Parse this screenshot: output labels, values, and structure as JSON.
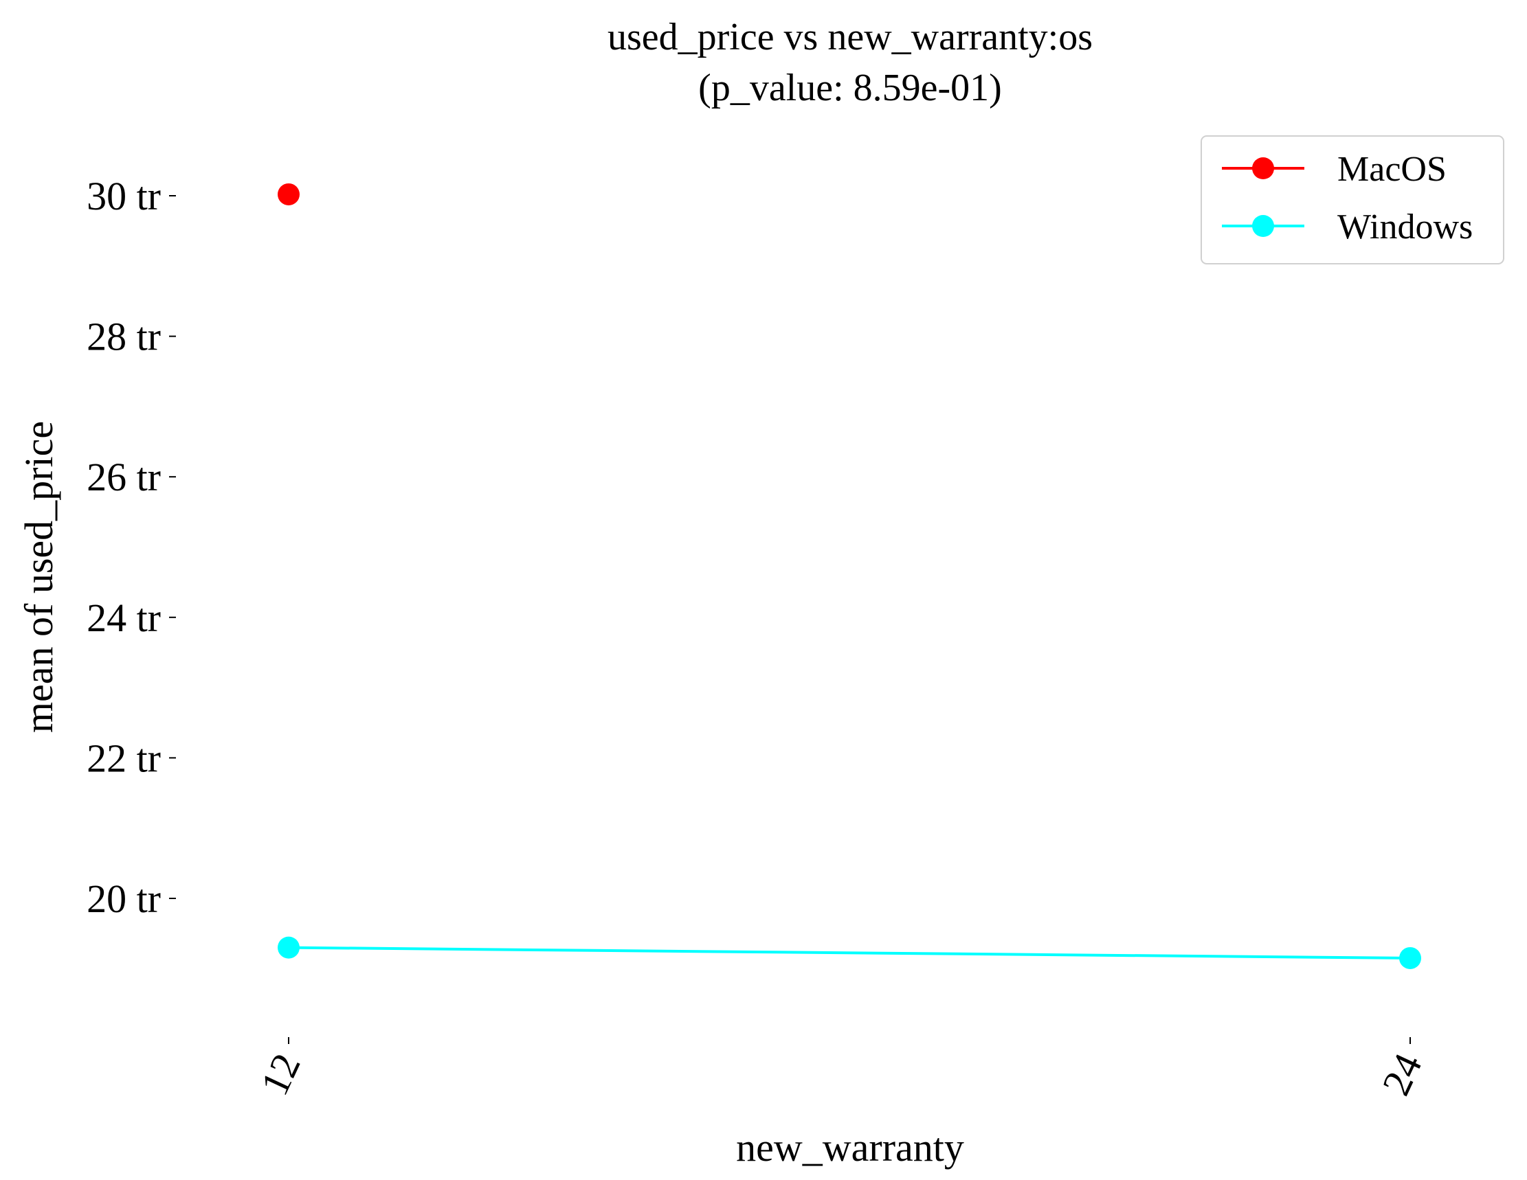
{
  "chart_data": {
    "type": "line",
    "title": [
      "used_price vs new_warranty:os",
      "(p_value: 8.59e-01)"
    ],
    "xlabel": "new_warranty",
    "ylabel": "mean of used_price",
    "categories": [
      "12",
      "24"
    ],
    "y_ticks": [
      {
        "value": 20,
        "label": "20 tr"
      },
      {
        "value": 22,
        "label": "22 tr"
      },
      {
        "value": 24,
        "label": "24 tr"
      },
      {
        "value": 26,
        "label": "26 tr"
      },
      {
        "value": 28,
        "label": "28 tr"
      },
      {
        "value": 30,
        "label": "30 tr"
      }
    ],
    "ylim": [
      17.9,
      31.2
    ],
    "grid": false,
    "legend_position": "top-right",
    "series": [
      {
        "name": "MacOS",
        "color": "#ff0000",
        "values": [
          30.02,
          null
        ]
      },
      {
        "name": "Windows",
        "color": "#00ffff",
        "values": [
          19.3,
          19.15
        ]
      }
    ]
  }
}
